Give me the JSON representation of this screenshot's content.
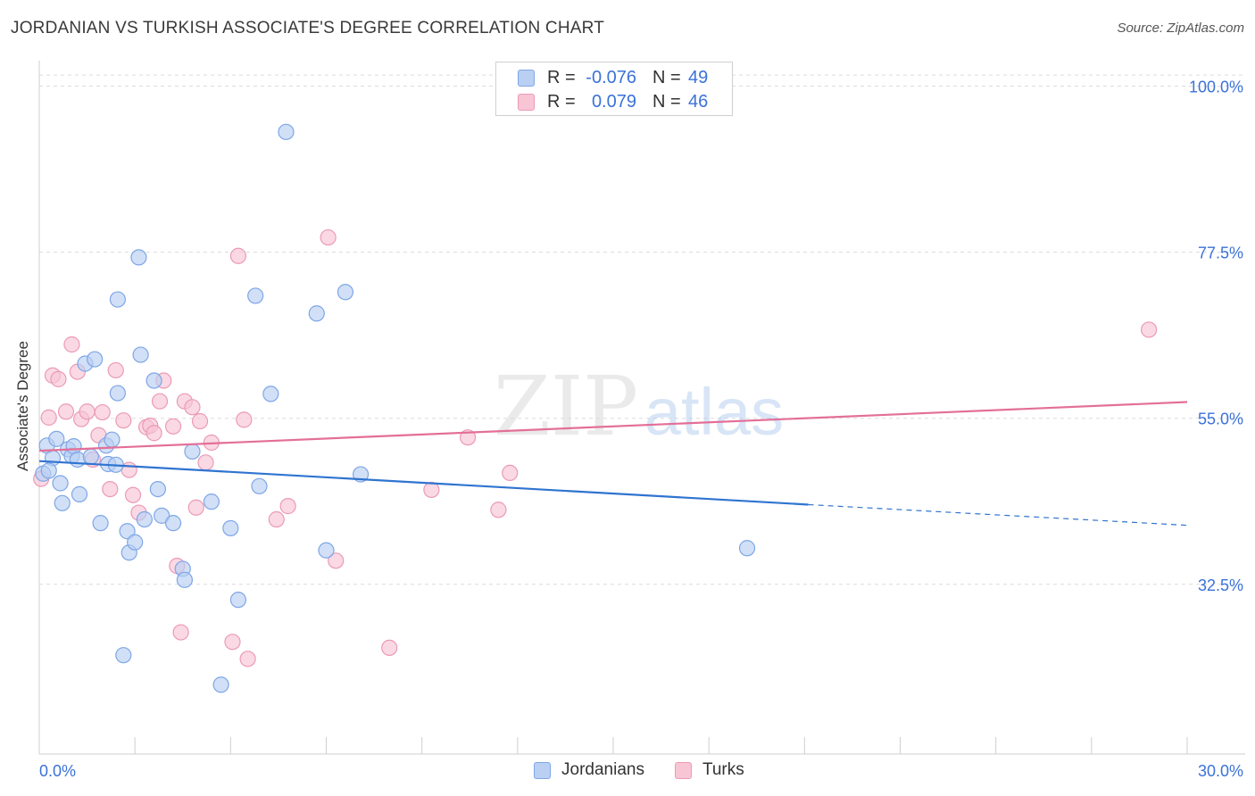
{
  "header": {
    "title": "JORDANIAN VS TURKISH ASSOCIATE'S DEGREE CORRELATION CHART",
    "source": "Source: ZipAtlas.com"
  },
  "legend_top": {
    "rows": [
      {
        "r_label": "R =",
        "r_value": "-0.076",
        "n_label": "N =",
        "n_value": "49"
      },
      {
        "r_label": "R =",
        "r_value": "0.079",
        "n_label": "N =",
        "n_value": "46"
      }
    ]
  },
  "legend_bottom": {
    "items": [
      "Jordanians",
      "Turks"
    ]
  },
  "watermark": {
    "part1": "ZIP",
    "part2": "atlas"
  },
  "colors": {
    "jordanians_fill": "#b9d0f3",
    "jordanians_stroke": "#7ea6e6",
    "jordanians_line": "#2f74d0",
    "turks_fill": "#f8c5d5",
    "turks_stroke": "#eb9ab5",
    "turks_line": "#e36f98",
    "tick_text": "#3a72d8",
    "grid": "#dcdcdc"
  },
  "chart_data": {
    "type": "scatter",
    "title": "JORDANIAN VS TURKISH ASSOCIATE'S DEGREE CORRELATION CHART",
    "xlabel": "",
    "ylabel": "Associate's Degree",
    "xlim": [
      0,
      30
    ],
    "ylim": [
      9.5,
      102
    ],
    "x_tick_labels": [
      "0.0%",
      "30.0%"
    ],
    "y_ticks": [
      32.5,
      55.0,
      77.5,
      100.0
    ],
    "y_tick_labels": [
      "32.5%",
      "55.0%",
      "77.5%",
      "100.0%"
    ],
    "grid": true,
    "legend_position": "top-center",
    "series": [
      {
        "name": "Jordanians",
        "r": -0.076,
        "n": 49,
        "trend": {
          "x_start": 0,
          "y_start": 49.2,
          "x_end": 20.1,
          "y_end": 43.3,
          "x_dash_end": 30,
          "y_dash_end": 40.5
        },
        "points": [
          [
            0.1,
            47.5
          ],
          [
            0.2,
            51.3
          ],
          [
            0.35,
            49.6
          ],
          [
            0.45,
            52.2
          ],
          [
            0.55,
            46.2
          ],
          [
            0.6,
            43.5
          ],
          [
            0.75,
            50.8
          ],
          [
            0.85,
            49.9
          ],
          [
            0.9,
            51.2
          ],
          [
            1.0,
            49.4
          ],
          [
            1.05,
            44.7
          ],
          [
            1.2,
            62.4
          ],
          [
            1.35,
            49.8
          ],
          [
            1.45,
            63.0
          ],
          [
            1.6,
            40.8
          ],
          [
            1.75,
            51.3
          ],
          [
            1.8,
            48.8
          ],
          [
            1.9,
            52.1
          ],
          [
            2.0,
            48.7
          ],
          [
            2.05,
            58.4
          ],
          [
            2.05,
            71.1
          ],
          [
            2.2,
            22.9
          ],
          [
            2.3,
            39.7
          ],
          [
            2.35,
            36.8
          ],
          [
            2.5,
            38.2
          ],
          [
            2.6,
            76.8
          ],
          [
            2.65,
            63.6
          ],
          [
            2.75,
            41.3
          ],
          [
            3.0,
            60.1
          ],
          [
            3.1,
            45.4
          ],
          [
            3.2,
            41.8
          ],
          [
            3.5,
            40.8
          ],
          [
            3.75,
            34.6
          ],
          [
            3.8,
            33.1
          ],
          [
            4.0,
            50.5
          ],
          [
            4.5,
            43.7
          ],
          [
            4.75,
            18.9
          ],
          [
            5.0,
            40.1
          ],
          [
            5.2,
            30.4
          ],
          [
            5.65,
            71.6
          ],
          [
            5.75,
            45.8
          ],
          [
            6.05,
            58.3
          ],
          [
            6.45,
            93.8
          ],
          [
            7.25,
            69.2
          ],
          [
            7.5,
            37.1
          ],
          [
            8.0,
            72.1
          ],
          [
            8.4,
            47.4
          ],
          [
            18.5,
            37.4
          ],
          [
            0.25,
            47.9
          ]
        ]
      },
      {
        "name": "Turks",
        "r": 0.079,
        "n": 46,
        "trend": {
          "x_start": 0,
          "y_start": 50.6,
          "x_end": 30,
          "y_end": 57.2
        },
        "points": [
          [
            0.05,
            46.8
          ],
          [
            0.25,
            55.1
          ],
          [
            0.35,
            60.8
          ],
          [
            0.5,
            60.3
          ],
          [
            0.7,
            55.9
          ],
          [
            0.85,
            65.0
          ],
          [
            1.0,
            61.3
          ],
          [
            1.1,
            54.9
          ],
          [
            1.25,
            55.9
          ],
          [
            1.4,
            49.4
          ],
          [
            1.55,
            52.7
          ],
          [
            1.65,
            55.8
          ],
          [
            1.85,
            45.4
          ],
          [
            2.0,
            61.5
          ],
          [
            2.2,
            54.7
          ],
          [
            2.35,
            48.0
          ],
          [
            2.45,
            44.6
          ],
          [
            2.6,
            42.2
          ],
          [
            2.8,
            53.8
          ],
          [
            2.9,
            54.0
          ],
          [
            3.0,
            53.0
          ],
          [
            3.15,
            57.3
          ],
          [
            3.25,
            60.1
          ],
          [
            3.5,
            53.9
          ],
          [
            3.6,
            35.0
          ],
          [
            3.7,
            26.0
          ],
          [
            3.8,
            57.3
          ],
          [
            4.0,
            56.5
          ],
          [
            4.1,
            42.9
          ],
          [
            4.2,
            54.6
          ],
          [
            4.35,
            49.0
          ],
          [
            4.5,
            51.7
          ],
          [
            5.05,
            24.7
          ],
          [
            5.2,
            77.0
          ],
          [
            5.35,
            54.8
          ],
          [
            5.45,
            22.4
          ],
          [
            6.2,
            41.3
          ],
          [
            6.5,
            43.1
          ],
          [
            7.55,
            79.5
          ],
          [
            7.75,
            35.7
          ],
          [
            9.15,
            23.9
          ],
          [
            10.25,
            45.3
          ],
          [
            11.2,
            52.4
          ],
          [
            12.0,
            42.6
          ],
          [
            12.3,
            47.6
          ],
          [
            29.0,
            67.0
          ]
        ]
      }
    ]
  }
}
